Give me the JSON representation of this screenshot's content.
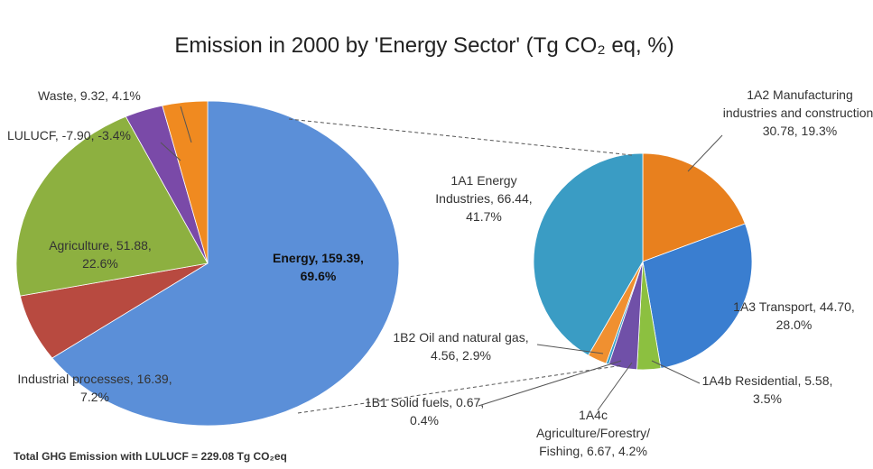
{
  "chart_data": [
    {
      "type": "pie",
      "title": "Emission in 2000 by 'Energy Sector' (Tg CO₂ eq, %)",
      "annotation": "Total GHG Emission with  LULUCF  =  229.08  Tg CO₂eq",
      "values": [
        159.39,
        16.39,
        51.88,
        -7.9,
        9.32
      ],
      "value_labels": [
        "Energy, 159.39, 69.6%",
        "Industrial processes, 16.39, 7.2%",
        "Agriculture, 51.88, 22.6%",
        "LULUCF, -7.90, -3.4%",
        "Waste, 9.32, 4.1%"
      ],
      "colors": [
        "#5b8fd8",
        "#b84a40",
        "#8db040",
        "#7a4aa8",
        "#f08a20"
      ]
    },
    {
      "type": "pie",
      "values": [
        30.78,
        44.7,
        5.58,
        6.67,
        0.67,
        4.56,
        66.44
      ],
      "value_labels": [
        "1A2 Manufacturing industries and construction, 30.78, 19.3%",
        "1A3 Transport, 44.70, 28.0%",
        "1A4b  Residential, 5.58, 3.5%",
        "1A4c Agriculture/Forestry/ Fishing, 6.67, 4.2%",
        "1B1 Solid fuels, 0.67, 0.4%",
        "1B2 Oil and natural gas, 4.56, 2.9%",
        "1A1 Energy Industries, 66.44, 41.7%"
      ],
      "colors": [
        "#e8801e",
        "#3a7ed0",
        "#8cc040",
        "#7050a8",
        "#3aa0c8",
        "#f09030",
        "#3a9cc4"
      ]
    }
  ]
}
